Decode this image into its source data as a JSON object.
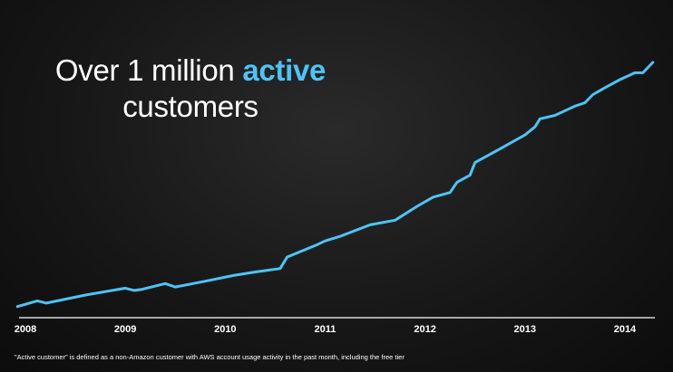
{
  "title": {
    "line1_prefix": "Over 1 million ",
    "line1_accent": "active",
    "line2": "customers"
  },
  "footnote": "\"Active customer\" is defined as a non-Amazon customer with AWS account usage activity in the past month, including the free tier",
  "colors": {
    "line": "#4fc3f7",
    "accent": "#4fc3f7",
    "axis": "#ffffff",
    "background": "#1a1a1a"
  },
  "chart_data": {
    "type": "line",
    "title": "Over 1 million active customers",
    "xlabel": "",
    "ylabel": "",
    "x_tick_labels": [
      "2008",
      "2009",
      "2010",
      "2011",
      "2012",
      "2013",
      "2014"
    ],
    "xlim": [
      2007.9,
      2014.3
    ],
    "ylim": [
      0,
      1.1
    ],
    "grid": false,
    "legend": "none",
    "series": [
      {
        "x": [
          2007.92,
          2008.12,
          2008.21,
          2008.6,
          2009.0,
          2009.09,
          2009.17,
          2009.4,
          2009.5,
          2009.8,
          2010.08,
          2010.3,
          2010.55,
          2010.62,
          2010.9,
          2011.0,
          2011.15,
          2011.45,
          2011.7,
          2011.92,
          2012.08,
          2012.25,
          2012.32,
          2012.45,
          2012.5,
          2012.75,
          2013.0,
          2013.1,
          2013.15,
          2013.3,
          2013.45,
          2013.5,
          2013.6,
          2013.68,
          2013.8,
          2013.95,
          2014.1,
          2014.18,
          2014.28
        ],
        "y": [
          0.005,
          0.03,
          0.02,
          0.055,
          0.085,
          0.075,
          0.08,
          0.105,
          0.09,
          0.115,
          0.14,
          0.155,
          0.17,
          0.22,
          0.27,
          0.29,
          0.31,
          0.36,
          0.38,
          0.44,
          0.48,
          0.5,
          0.545,
          0.575,
          0.63,
          0.69,
          0.75,
          0.785,
          0.82,
          0.835,
          0.865,
          0.875,
          0.89,
          0.925,
          0.955,
          0.99,
          1.02,
          1.02,
          1.065
        ]
      }
    ]
  }
}
